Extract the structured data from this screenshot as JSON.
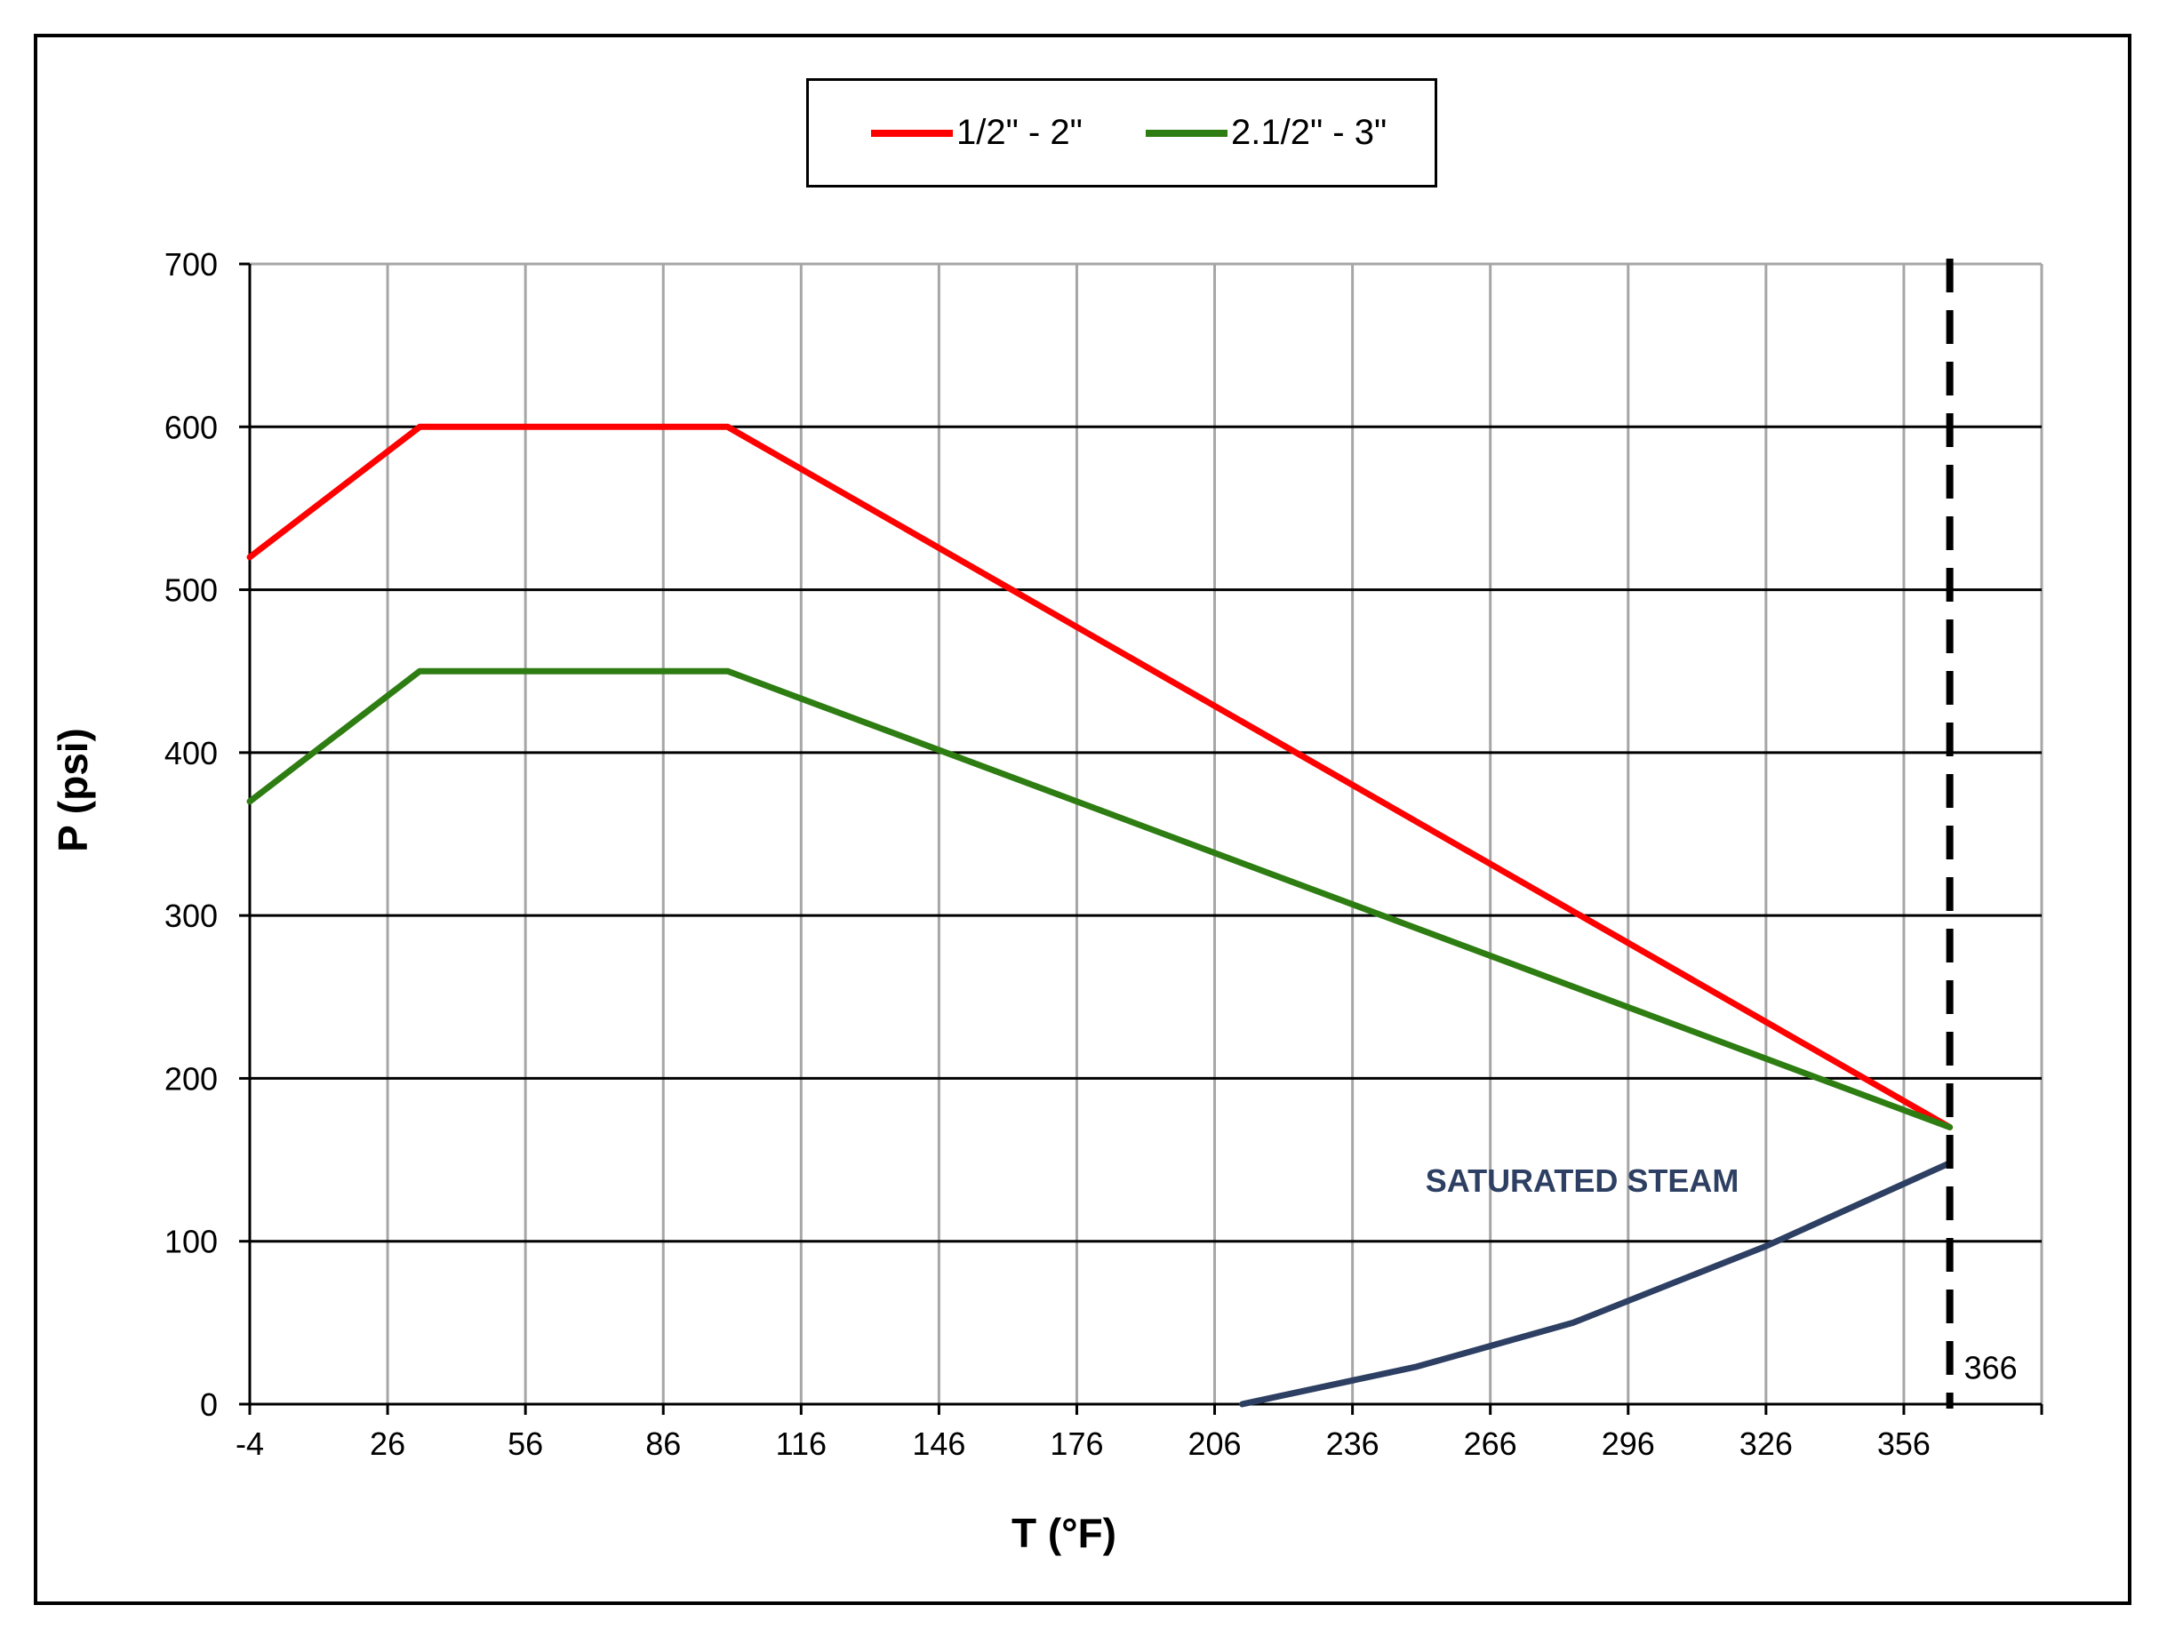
{
  "chart_data": {
    "type": "line",
    "title": "",
    "xlabel": "T (°F)",
    "ylabel": "P (psi)",
    "xlim": [
      -4,
      386
    ],
    "ylim": [
      0,
      700
    ],
    "x_ticks": [
      -4,
      26,
      56,
      86,
      116,
      146,
      176,
      206,
      236,
      266,
      296,
      326,
      356
    ],
    "x_tick_labels": [
      "-4",
      "26",
      "56",
      "86",
      "116",
      "146",
      "176",
      "206",
      "236",
      "266",
      "296",
      "326",
      "356"
    ],
    "y_ticks": [
      0,
      100,
      200,
      300,
      400,
      500,
      600,
      700
    ],
    "y_tick_labels": [
      "0",
      "100",
      "200",
      "300",
      "400",
      "500",
      "600",
      "700"
    ],
    "grid": true,
    "legend_position": "top-center",
    "series": [
      {
        "name": "1/2\" - 2\"",
        "color": "#ff0000",
        "x": [
          -4,
          33,
          100,
          366
        ],
        "y": [
          520,
          600,
          600,
          170
        ]
      },
      {
        "name": "2.1/2\" - 3\"",
        "color": "#2e7d12",
        "x": [
          -4,
          33,
          100,
          366
        ],
        "y": [
          370,
          450,
          450,
          170
        ]
      },
      {
        "color": "#2d3f62",
        "x": [
          212,
          250,
          284,
          326,
          366
        ],
        "y": [
          0,
          23,
          50,
          97,
          148
        ]
      }
    ],
    "annotations": [
      {
        "text": "SATURATED STEAM",
        "x": 286,
        "y": 138
      },
      {
        "text": "366",
        "x": 366,
        "y": 10
      }
    ],
    "vertical_marker": {
      "x": 366,
      "style": "dashed",
      "label": "366"
    }
  }
}
